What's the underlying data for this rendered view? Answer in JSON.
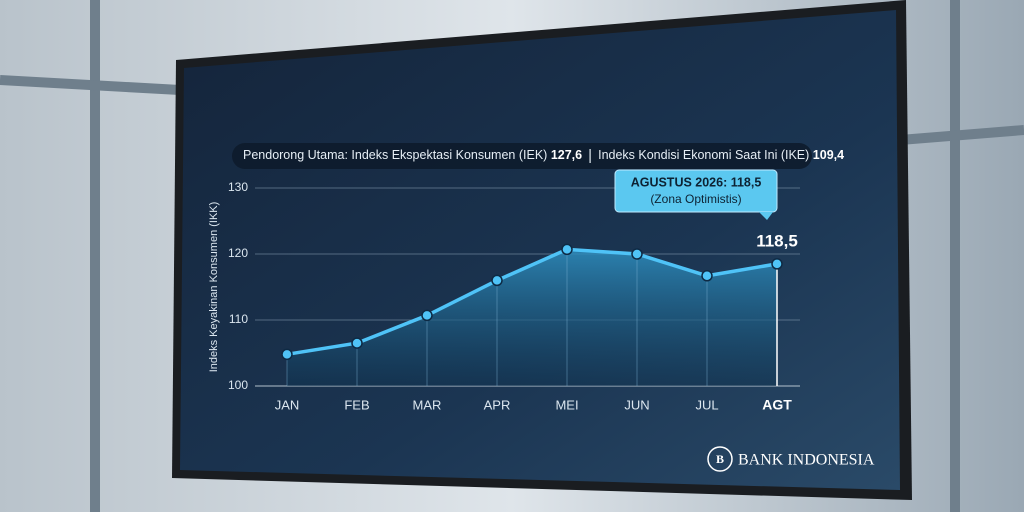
{
  "chart_data": {
    "type": "line",
    "subtitle_parts": [
      "Pendorong Utama: Indeks Ekspektasi Konsumen (IEK)",
      "127,6",
      "Indeks Kondisi Ekonomi Saat Ini (IKE)",
      "109,4"
    ],
    "y_label": "Indeks Keyakinan Konsumen (IKK)",
    "categories": [
      "JAN",
      "FEB",
      "MAR",
      "APR",
      "MEI",
      "JUN",
      "JUL",
      "AGT"
    ],
    "values": [
      104.8,
      106.5,
      110.7,
      116,
      120.7,
      120,
      116.7,
      118.5
    ],
    "value_labels": [
      null,
      null,
      null,
      null,
      null,
      null,
      null,
      "118,5"
    ],
    "color": "#4fc3f7",
    "ylim": [
      100,
      130
    ],
    "yticks": [
      100,
      110,
      120,
      130
    ],
    "grid": true,
    "annotation": {
      "title": "AGUSTUS 2026: 118,5",
      "text": "(Zona Optimistis)"
    },
    "brand": "BANK INDONESIA"
  }
}
